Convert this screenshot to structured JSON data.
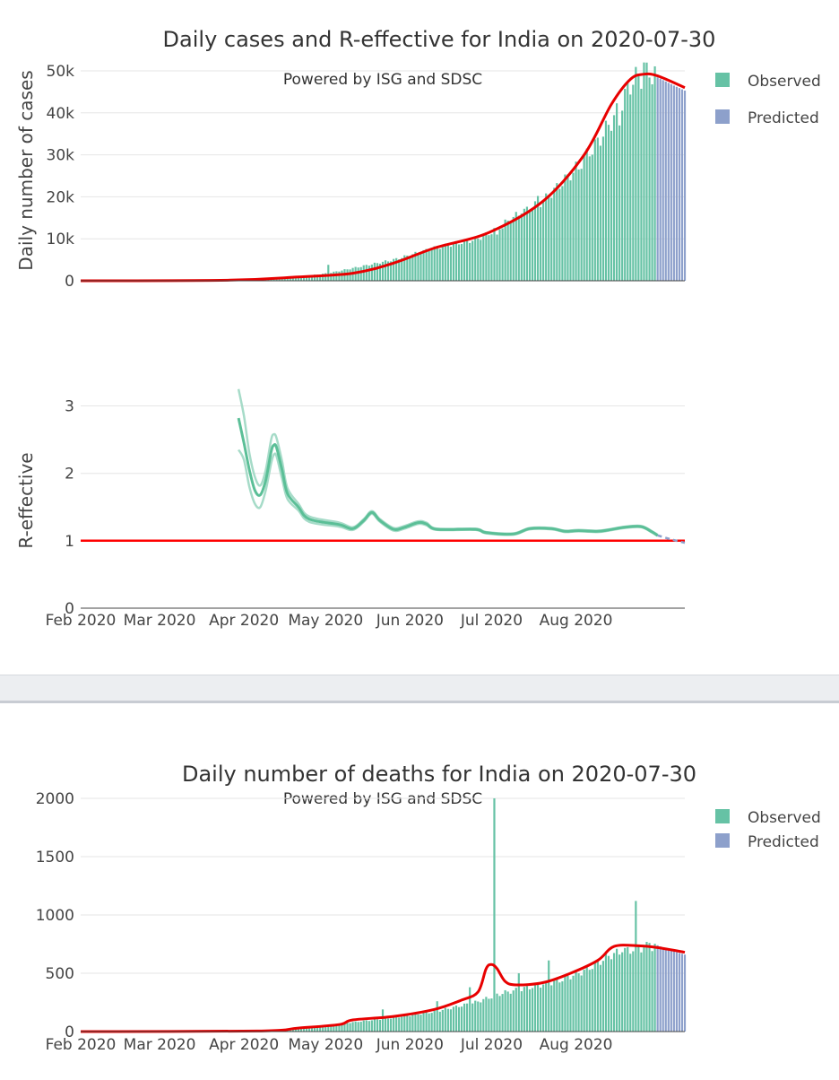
{
  "colors": {
    "observed": "#66c2a5",
    "predicted": "#8da0cb",
    "trend": "#e80000",
    "r_band": "#a6dbc8",
    "r_line": "#5bbf97",
    "r_one": "#ff0000"
  },
  "chart_data": [
    {
      "type": "bar",
      "title": "Daily cases and R-effective for India on 2020-07-30",
      "subtitle": "Powered by ISG and SDSC",
      "ylabel": "Daily number of cases",
      "xlabel": "",
      "x_ticks": [
        "Feb 2020",
        "Mar 2020",
        "Apr 2020",
        "May 2020",
        "Jun 2020",
        "Jul 2020",
        "Aug 2020"
      ],
      "y_ticks": [
        "0",
        "10k",
        "20k",
        "30k",
        "40k",
        "50k"
      ],
      "ylim": [
        0,
        50000
      ],
      "legend": [
        "Observed",
        "Predicted"
      ],
      "series": [
        {
          "name": "Observed",
          "kind": "bars",
          "knots": [
            [
              3,
              0
            ],
            [
              60,
              100
            ],
            [
              75,
              500
            ],
            [
              91,
              1800
            ],
            [
              100,
              3000
            ],
            [
              115,
              5000
            ],
            [
              130,
              7800
            ],
            [
              145,
              9800
            ],
            [
              150,
              11200
            ],
            [
              160,
              15500
            ],
            [
              170,
              19000
            ],
            [
              181,
              26000
            ],
            [
              190,
              33000
            ],
            [
              197,
              40000
            ],
            [
              200,
              44000
            ],
            [
              203,
              48000
            ],
            [
              210,
              49500
            ]
          ],
          "spikes": [
            [
              91,
              3800
            ],
            [
              153,
              11000
            ],
            [
              155,
              12500
            ],
            [
              162,
              16000
            ],
            [
              168,
              20200
            ],
            [
              183,
              26500
            ],
            [
              198,
              37000
            ],
            [
              207,
              52000
            ]
          ],
          "day_range": [
            0,
            211
          ]
        },
        {
          "name": "Predicted",
          "kind": "bars",
          "knots": [
            [
              211,
              48800
            ],
            [
              214,
              47800
            ],
            [
              218,
              46500
            ],
            [
              222,
              45300
            ]
          ],
          "day_range": [
            212,
            222
          ]
        },
        {
          "name": "Trend",
          "kind": "line",
          "points": [
            [
              0,
              0
            ],
            [
              55,
              150
            ],
            [
              80,
              900
            ],
            [
              100,
              1800
            ],
            [
              115,
              4200
            ],
            [
              130,
              7800
            ],
            [
              150,
              11500
            ],
            [
              170,
              19000
            ],
            [
              185,
              30000
            ],
            [
              195,
              42000
            ],
            [
              202,
              48000
            ],
            [
              207,
              49200
            ],
            [
              212,
              48800
            ],
            [
              222,
              46000
            ]
          ]
        }
      ]
    },
    {
      "type": "line",
      "ylabel": "R-effective",
      "xlabel": "",
      "x_ticks": [
        "Feb 2020",
        "Mar 2020",
        "Apr 2020",
        "May 2020",
        "Jun 2020",
        "Jul 2020",
        "Aug 2020"
      ],
      "y_ticks": [
        "0",
        "1",
        "2",
        "3"
      ],
      "ylim": [
        0,
        3.3
      ],
      "series": [
        {
          "name": "R-effective",
          "points": [
            [
              58,
              2.82
            ],
            [
              60,
              2.45
            ],
            [
              62,
              2.05
            ],
            [
              64,
              1.75
            ],
            [
              66,
              1.68
            ],
            [
              68,
              1.9
            ],
            [
              70,
              2.32
            ],
            [
              71,
              2.42
            ],
            [
              72,
              2.38
            ],
            [
              74,
              2.05
            ],
            [
              76,
              1.7
            ],
            [
              80,
              1.5
            ],
            [
              84,
              1.32
            ],
            [
              95,
              1.24
            ],
            [
              100,
              1.18
            ],
            [
              104,
              1.3
            ],
            [
              107,
              1.42
            ],
            [
              110,
              1.3
            ],
            [
              115,
              1.17
            ],
            [
              119,
              1.2
            ],
            [
              124,
              1.27
            ],
            [
              127,
              1.25
            ],
            [
              131,
              1.17
            ],
            [
              145,
              1.17
            ],
            [
              149,
              1.12
            ],
            [
              159,
              1.1
            ],
            [
              165,
              1.18
            ],
            [
              173,
              1.18
            ],
            [
              178,
              1.14
            ],
            [
              183,
              1.15
            ],
            [
              190,
              1.14
            ],
            [
              194,
              1.16
            ],
            [
              200,
              1.2
            ],
            [
              206,
              1.21
            ],
            [
              210,
              1.13
            ],
            [
              212,
              1.08
            ]
          ]
        },
        {
          "name": "R-effective upper",
          "points": [
            [
              58,
              3.25
            ],
            [
              60,
              2.85
            ],
            [
              62,
              2.3
            ],
            [
              64,
              1.95
            ],
            [
              66,
              1.82
            ],
            [
              68,
              2.05
            ],
            [
              70,
              2.5
            ],
            [
              71,
              2.58
            ],
            [
              72,
              2.52
            ],
            [
              74,
              2.18
            ],
            [
              76,
              1.78
            ],
            [
              80,
              1.55
            ],
            [
              84,
              1.36
            ],
            [
              95,
              1.27
            ],
            [
              100,
              1.2
            ],
            [
              104,
              1.32
            ],
            [
              107,
              1.44
            ],
            [
              110,
              1.32
            ],
            [
              115,
              1.19
            ],
            [
              119,
              1.22
            ],
            [
              124,
              1.29
            ],
            [
              127,
              1.27
            ],
            [
              131,
              1.18
            ],
            [
              145,
              1.18
            ],
            [
              149,
              1.13
            ],
            [
              159,
              1.11
            ],
            [
              165,
              1.19
            ],
            [
              173,
              1.19
            ],
            [
              178,
              1.15
            ],
            [
              183,
              1.16
            ],
            [
              190,
              1.15
            ],
            [
              194,
              1.17
            ],
            [
              200,
              1.21
            ],
            [
              206,
              1.22
            ],
            [
              210,
              1.14
            ],
            [
              212,
              1.09
            ]
          ]
        },
        {
          "name": "R-effective lower",
          "points": [
            [
              58,
              2.35
            ],
            [
              60,
              2.2
            ],
            [
              62,
              1.8
            ],
            [
              64,
              1.55
            ],
            [
              66,
              1.5
            ],
            [
              68,
              1.75
            ],
            [
              70,
              2.15
            ],
            [
              71,
              2.28
            ],
            [
              72,
              2.25
            ],
            [
              74,
              1.92
            ],
            [
              76,
              1.62
            ],
            [
              80,
              1.45
            ],
            [
              84,
              1.28
            ],
            [
              95,
              1.21
            ],
            [
              100,
              1.16
            ],
            [
              104,
              1.28
            ],
            [
              107,
              1.4
            ],
            [
              110,
              1.28
            ],
            [
              115,
              1.15
            ],
            [
              119,
              1.18
            ],
            [
              124,
              1.25
            ],
            [
              127,
              1.23
            ],
            [
              131,
              1.16
            ],
            [
              145,
              1.16
            ],
            [
              149,
              1.11
            ],
            [
              159,
              1.09
            ],
            [
              165,
              1.17
            ],
            [
              173,
              1.17
            ],
            [
              178,
              1.13
            ],
            [
              183,
              1.14
            ],
            [
              190,
              1.13
            ],
            [
              194,
              1.15
            ],
            [
              200,
              1.19
            ],
            [
              206,
              1.2
            ],
            [
              210,
              1.12
            ],
            [
              212,
              1.07
            ]
          ]
        },
        {
          "name": "R-effective predicted",
          "points": [
            [
              212,
              1.08
            ],
            [
              217,
              1.02
            ],
            [
              222,
              0.97
            ]
          ]
        },
        {
          "name": "R = 1",
          "points": [
            [
              0,
              1
            ],
            [
              222,
              1
            ]
          ]
        }
      ]
    },
    {
      "type": "bar",
      "title": "Daily number of deaths for India on 2020-07-30",
      "subtitle": "Powered by ISG and SDSC",
      "ylabel": "",
      "xlabel": "",
      "x_ticks": [
        "Feb 2020",
        "Mar 2020",
        "Apr 2020",
        "May 2020",
        "Jun 2020",
        "Jul 2020",
        "Aug 2020"
      ],
      "y_ticks": [
        "0",
        "500",
        "1000",
        "1500",
        "2000"
      ],
      "ylim": [
        0,
        2000
      ],
      "legend": [
        "Observed",
        "Predicted"
      ],
      "series": [
        {
          "name": "Observed",
          "kind": "bars",
          "knots": [
            [
              3,
              0
            ],
            [
              70,
              5
            ],
            [
              85,
              40
            ],
            [
              100,
              80
            ],
            [
              115,
              120
            ],
            [
              130,
              170
            ],
            [
              145,
              250
            ],
            [
              155,
              330
            ],
            [
              165,
              380
            ],
            [
              175,
              430
            ],
            [
              185,
              520
            ],
            [
              195,
              660
            ],
            [
              205,
              720
            ],
            [
              210,
              730
            ]
          ],
          "spikes": [
            [
              111,
              190
            ],
            [
              131,
              260
            ],
            [
              143,
              380
            ],
            [
              152,
              2000
            ],
            [
              161,
              500
            ],
            [
              172,
              610
            ],
            [
              199,
              680
            ],
            [
              204,
              1120
            ],
            [
              209,
              760
            ]
          ],
          "day_range": [
            0,
            211
          ]
        },
        {
          "name": "Predicted",
          "kind": "bars",
          "knots": [
            [
              211,
              750
            ],
            [
              216,
              700
            ],
            [
              222,
              660
            ]
          ],
          "day_range": [
            212,
            222
          ]
        },
        {
          "name": "Trend",
          "kind": "line",
          "points": [
            [
              0,
              0
            ],
            [
              65,
              5
            ],
            [
              80,
              30
            ],
            [
              95,
              60
            ],
            [
              100,
              100
            ],
            [
              115,
              130
            ],
            [
              130,
              190
            ],
            [
              140,
              270
            ],
            [
              146,
              340
            ],
            [
              149,
              540
            ],
            [
              151,
              575
            ],
            [
              153,
              540
            ],
            [
              156,
              430
            ],
            [
              160,
              400
            ],
            [
              170,
              420
            ],
            [
              180,
              500
            ],
            [
              190,
              610
            ],
            [
              196,
              730
            ],
            [
              205,
              735
            ],
            [
              212,
              720
            ],
            [
              222,
              680
            ]
          ]
        }
      ]
    }
  ]
}
